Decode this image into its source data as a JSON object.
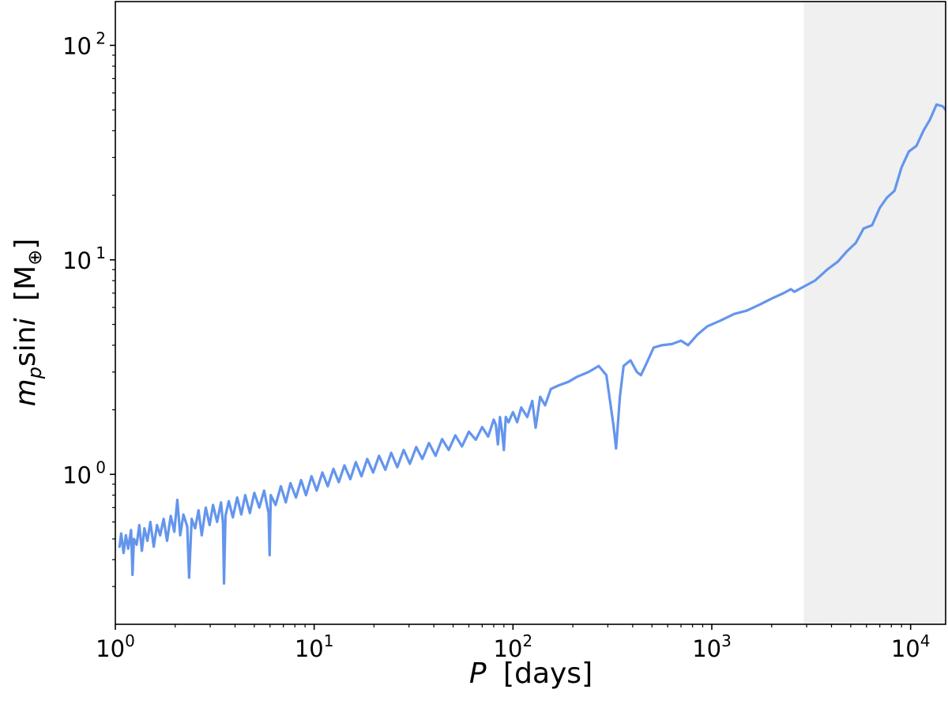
{
  "chart_data": {
    "type": "line",
    "xscale": "log",
    "yscale": "log",
    "xlim": [
      1,
      15000
    ],
    "ylim": [
      0.2,
      160
    ],
    "xlabel": {
      "var": "P",
      "unit": "[days]"
    },
    "ylabel": {
      "var_base": "m",
      "var_sub": "p",
      "mid": "sin",
      "var_i": "i",
      "unit_open": "[M",
      "unit_sub": "⊕",
      "unit_close": "]"
    },
    "x_ticks": [
      {
        "value": 1,
        "base": "10",
        "exp": "0"
      },
      {
        "value": 10,
        "base": "10",
        "exp": "1"
      },
      {
        "value": 100,
        "base": "10",
        "exp": "2"
      },
      {
        "value": 1000,
        "base": "10",
        "exp": "3"
      },
      {
        "value": 10000,
        "base": "10",
        "exp": "4"
      }
    ],
    "y_ticks": [
      {
        "value": 1,
        "base": "10",
        "exp": "0"
      },
      {
        "value": 10,
        "base": "10",
        "exp": "1"
      },
      {
        "value": 100,
        "base": "10",
        "exp": "2"
      }
    ],
    "shaded_region": {
      "x_from": 2900,
      "x_to": 15000,
      "color": "#f0f0f0"
    },
    "line_color": "#6495ED",
    "series": [
      {
        "points": [
          [
            1.05,
            0.46
          ],
          [
            1.07,
            0.53
          ],
          [
            1.1,
            0.43
          ],
          [
            1.13,
            0.52
          ],
          [
            1.16,
            0.45
          ],
          [
            1.2,
            0.55
          ],
          [
            1.22,
            0.34
          ],
          [
            1.24,
            0.5
          ],
          [
            1.28,
            0.47
          ],
          [
            1.32,
            0.58
          ],
          [
            1.36,
            0.44
          ],
          [
            1.4,
            0.56
          ],
          [
            1.45,
            0.49
          ],
          [
            1.5,
            0.6
          ],
          [
            1.56,
            0.46
          ],
          [
            1.62,
            0.58
          ],
          [
            1.68,
            0.52
          ],
          [
            1.75,
            0.62
          ],
          [
            1.82,
            0.49
          ],
          [
            1.9,
            0.64
          ],
          [
            1.98,
            0.54
          ],
          [
            2.05,
            0.76
          ],
          [
            2.12,
            0.52
          ],
          [
            2.2,
            0.65
          ],
          [
            2.3,
            0.57
          ],
          [
            2.35,
            0.33
          ],
          [
            2.42,
            0.62
          ],
          [
            2.52,
            0.56
          ],
          [
            2.62,
            0.68
          ],
          [
            2.72,
            0.52
          ],
          [
            2.85,
            0.7
          ],
          [
            2.98,
            0.58
          ],
          [
            3.1,
            0.72
          ],
          [
            3.25,
            0.6
          ],
          [
            3.4,
            0.74
          ],
          [
            3.48,
            0.59
          ],
          [
            3.52,
            0.31
          ],
          [
            3.58,
            0.64
          ],
          [
            3.72,
            0.75
          ],
          [
            3.9,
            0.63
          ],
          [
            4.1,
            0.78
          ],
          [
            4.3,
            0.65
          ],
          [
            4.5,
            0.8
          ],
          [
            4.75,
            0.66
          ],
          [
            5.0,
            0.82
          ],
          [
            5.3,
            0.7
          ],
          [
            5.6,
            0.84
          ],
          [
            5.9,
            0.66
          ],
          [
            5.97,
            0.42
          ],
          [
            6.05,
            0.8
          ],
          [
            6.4,
            0.72
          ],
          [
            6.8,
            0.88
          ],
          [
            7.2,
            0.74
          ],
          [
            7.6,
            0.91
          ],
          [
            8.1,
            0.78
          ],
          [
            8.6,
            0.94
          ],
          [
            9.1,
            0.8
          ],
          [
            9.7,
            0.98
          ],
          [
            10.3,
            0.84
          ],
          [
            11,
            1.02
          ],
          [
            11.7,
            0.88
          ],
          [
            12.5,
            1.06
          ],
          [
            13.3,
            0.92
          ],
          [
            14.2,
            1.1
          ],
          [
            15.2,
            0.95
          ],
          [
            16.2,
            1.14
          ],
          [
            17.3,
            0.98
          ],
          [
            18.5,
            1.18
          ],
          [
            19.8,
            1.02
          ],
          [
            21.2,
            1.22
          ],
          [
            22.8,
            1.05
          ],
          [
            24.4,
            1.26
          ],
          [
            26.2,
            1.08
          ],
          [
            28.2,
            1.3
          ],
          [
            30.3,
            1.12
          ],
          [
            32.6,
            1.34
          ],
          [
            35,
            1.18
          ],
          [
            37.8,
            1.4
          ],
          [
            40.8,
            1.22
          ],
          [
            44,
            1.46
          ],
          [
            47.5,
            1.3
          ],
          [
            51.3,
            1.52
          ],
          [
            55.4,
            1.35
          ],
          [
            60,
            1.58
          ],
          [
            65,
            1.45
          ],
          [
            70,
            1.66
          ],
          [
            75,
            1.5
          ],
          [
            80,
            1.8
          ],
          [
            82,
            1.7
          ],
          [
            84,
            1.38
          ],
          [
            86,
            1.85
          ],
          [
            88,
            1.6
          ],
          [
            90,
            1.3
          ],
          [
            92,
            1.85
          ],
          [
            95,
            1.75
          ],
          [
            100,
            1.95
          ],
          [
            105,
            1.75
          ],
          [
            110,
            2.05
          ],
          [
            118,
            1.85
          ],
          [
            125,
            2.2
          ],
          [
            130,
            1.65
          ],
          [
            137,
            2.3
          ],
          [
            145,
            2.1
          ],
          [
            155,
            2.5
          ],
          [
            170,
            2.6
          ],
          [
            190,
            2.7
          ],
          [
            210,
            2.85
          ],
          [
            240,
            3.0
          ],
          [
            270,
            3.2
          ],
          [
            295,
            2.9
          ],
          [
            320,
            1.7
          ],
          [
            330,
            1.32
          ],
          [
            345,
            2.3
          ],
          [
            360,
            3.2
          ],
          [
            390,
            3.4
          ],
          [
            420,
            3.0
          ],
          [
            440,
            2.9
          ],
          [
            470,
            3.3
          ],
          [
            510,
            3.9
          ],
          [
            560,
            4.0
          ],
          [
            630,
            4.05
          ],
          [
            700,
            4.2
          ],
          [
            760,
            4.0
          ],
          [
            850,
            4.5
          ],
          [
            950,
            4.9
          ],
          [
            1100,
            5.2
          ],
          [
            1300,
            5.6
          ],
          [
            1500,
            5.8
          ],
          [
            1750,
            6.2
          ],
          [
            2000,
            6.6
          ],
          [
            2300,
            7.0
          ],
          [
            2500,
            7.3
          ],
          [
            2600,
            7.1
          ],
          [
            2900,
            7.5
          ],
          [
            3300,
            8.0
          ],
          [
            3800,
            9.0
          ],
          [
            4300,
            9.8
          ],
          [
            4800,
            11.0
          ],
          [
            5300,
            12.0
          ],
          [
            5800,
            14.0
          ],
          [
            6400,
            14.5
          ],
          [
            7000,
            17.5
          ],
          [
            7600,
            19.5
          ],
          [
            8300,
            21.0
          ],
          [
            9000,
            27.0
          ],
          [
            9800,
            32.0
          ],
          [
            10700,
            34.0
          ],
          [
            11600,
            40.0
          ],
          [
            12500,
            45.0
          ],
          [
            13500,
            53.0
          ],
          [
            14500,
            52.0
          ],
          [
            15000,
            50.0
          ]
        ]
      }
    ]
  }
}
